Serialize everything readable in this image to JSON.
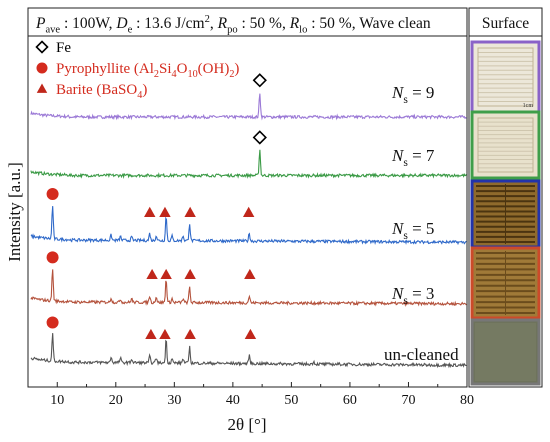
{
  "chart_data": {
    "type": "line",
    "header": {
      "segments": [
        {
          "t": "P",
          "s": "i"
        },
        {
          "t": "ave",
          "s": "sub"
        },
        {
          "t": " : 100W, ",
          "s": "n"
        },
        {
          "t": "D",
          "s": "i"
        },
        {
          "t": "e",
          "s": "sub"
        },
        {
          "t": " : 13.6 J/cm",
          "s": "n"
        },
        {
          "t": "2",
          "s": "sup"
        },
        {
          "t": ", ",
          "s": "n"
        },
        {
          "t": "R",
          "s": "i"
        },
        {
          "t": "po",
          "s": "sub"
        },
        {
          "t": " : 50 %, ",
          "s": "n"
        },
        {
          "t": "R",
          "s": "i"
        },
        {
          "t": "lo",
          "s": "sub"
        },
        {
          "t": " : 50 %, Wave clean",
          "s": "n"
        }
      ]
    },
    "surface_header": "Surface",
    "xlabel": "2θ [°]",
    "ylabel": "Intensity [a.u.]",
    "xlim": [
      5,
      80
    ],
    "xticks": [
      "10",
      "20",
      "30",
      "40",
      "50",
      "60",
      "70",
      "80"
    ],
    "legend": [
      {
        "marker": "diamond",
        "color": "#000000",
        "parts": [
          {
            "t": "Fe",
            "s": "n"
          }
        ]
      },
      {
        "marker": "circle",
        "color": "#d42b1e",
        "parts": [
          {
            "t": "Pyrophyllite (Al",
            "s": "n"
          },
          {
            "t": "2",
            "s": "sub"
          },
          {
            "t": "Si",
            "s": "n"
          },
          {
            "t": "4",
            "s": "sub"
          },
          {
            "t": "O",
            "s": "n"
          },
          {
            "t": "10",
            "s": "sub"
          },
          {
            "t": "(OH)",
            "s": "n"
          },
          {
            "t": "2",
            "s": "sub"
          },
          {
            "t": ")",
            "s": "n"
          }
        ]
      },
      {
        "marker": "triangle",
        "color": "#d42b1e",
        "parts": [
          {
            "t": "Barite (BaSO",
            "s": "n"
          },
          {
            "t": "4",
            "s": "sub"
          },
          {
            "t": ")",
            "s": "n"
          }
        ]
      }
    ],
    "series": [
      {
        "label": "N",
        "sub": "s",
        "value": "= 9",
        "color": "#9b79d6",
        "base": 0.08,
        "slope": 0.0,
        "peaks": [
          {
            "x": 44.6,
            "h": 1.9
          }
        ],
        "markers": [
          {
            "x": 44.6,
            "kind": "diamond"
          }
        ]
      },
      {
        "label": "N",
        "sub": "s",
        "value": "= 7",
        "color": "#3a9a45",
        "base": 0.12,
        "slope": 0.0,
        "peaks": [
          {
            "x": 44.6,
            "h": 2.0
          }
        ],
        "markers": [
          {
            "x": 44.6,
            "kind": "diamond"
          }
        ]
      },
      {
        "label": "N",
        "sub": "s",
        "value": "= 5",
        "color": "#2f69c9",
        "base": 0.4,
        "slope": -0.0025,
        "peaks": [
          {
            "x": 9.2,
            "h": 2.6
          },
          {
            "x": 19.2,
            "h": 0.4
          },
          {
            "x": 20.8,
            "h": 0.3
          },
          {
            "x": 22.7,
            "h": 0.25
          },
          {
            "x": 25.8,
            "h": 0.55
          },
          {
            "x": 26.9,
            "h": 0.4
          },
          {
            "x": 28.6,
            "h": 1.95
          },
          {
            "x": 29.6,
            "h": 0.35
          },
          {
            "x": 31.5,
            "h": 0.4
          },
          {
            "x": 32.6,
            "h": 1.35
          },
          {
            "x": 42.8,
            "h": 0.6
          }
        ],
        "markers": [
          {
            "x": 9.2,
            "kind": "circle"
          },
          {
            "x": 25.8,
            "kind": "triangle"
          },
          {
            "x": 28.4,
            "kind": "triangle"
          },
          {
            "x": 32.7,
            "kind": "triangle"
          },
          {
            "x": 42.7,
            "kind": "triangle"
          }
        ]
      },
      {
        "label": "N",
        "sub": "s",
        "value": "= 3",
        "color": "#b4523c",
        "base": 0.32,
        "slope": -0.002,
        "peaks": [
          {
            "x": 9.2,
            "h": 2.5
          },
          {
            "x": 19.2,
            "h": 0.35
          },
          {
            "x": 20.8,
            "h": 0.25
          },
          {
            "x": 22.7,
            "h": 0.3
          },
          {
            "x": 25.8,
            "h": 0.5
          },
          {
            "x": 26.9,
            "h": 0.45
          },
          {
            "x": 28.6,
            "h": 1.85
          },
          {
            "x": 29.6,
            "h": 0.3
          },
          {
            "x": 31.5,
            "h": 0.3
          },
          {
            "x": 32.6,
            "h": 1.2
          },
          {
            "x": 42.8,
            "h": 0.55
          }
        ],
        "markers": [
          {
            "x": 9.2,
            "kind": "circle"
          },
          {
            "x": 26.2,
            "kind": "triangle"
          },
          {
            "x": 28.6,
            "kind": "triangle"
          },
          {
            "x": 32.7,
            "kind": "triangle"
          },
          {
            "x": 42.9,
            "kind": "triangle"
          }
        ]
      },
      {
        "label": "un-cleaned",
        "sub": "",
        "value": "",
        "color": "#555555",
        "base": 0.55,
        "slope": -0.0035,
        "peaks": [
          {
            "x": 9.2,
            "h": 2.1
          },
          {
            "x": 19.2,
            "h": 0.45
          },
          {
            "x": 20.8,
            "h": 0.35
          },
          {
            "x": 22.7,
            "h": 0.3
          },
          {
            "x": 25.8,
            "h": 0.5
          },
          {
            "x": 26.9,
            "h": 0.4
          },
          {
            "x": 28.6,
            "h": 1.85
          },
          {
            "x": 29.6,
            "h": 0.35
          },
          {
            "x": 31.5,
            "h": 0.35
          },
          {
            "x": 32.6,
            "h": 1.25
          },
          {
            "x": 42.8,
            "h": 0.65
          },
          {
            "x": 53.8,
            "h": 0.2
          }
        ],
        "markers": [
          {
            "x": 9.2,
            "kind": "circle"
          },
          {
            "x": 26.0,
            "kind": "triangle"
          },
          {
            "x": 28.4,
            "kind": "triangle"
          },
          {
            "x": 32.7,
            "kind": "triangle"
          },
          {
            "x": 43.0,
            "kind": "triangle"
          }
        ]
      }
    ],
    "surface_images": [
      {
        "frame_color": "#8a62c8",
        "fill": "#ece7d9",
        "pattern": "weave-light",
        "caption": "1cm"
      },
      {
        "frame_color": "#3f9e4a",
        "fill": "#e8e1cc",
        "pattern": "weave-light",
        "caption": ""
      },
      {
        "frame_color": "#2233aa",
        "fill": "#8f6a2c",
        "pattern": "stripes-dark",
        "caption": ""
      },
      {
        "frame_color": "#cc4a2a",
        "fill": "#a07a38",
        "pattern": "stripes-mid",
        "caption": ""
      },
      {
        "frame_color": "#777777",
        "fill": "#6e735c",
        "pattern": "plain",
        "caption": ""
      }
    ]
  }
}
